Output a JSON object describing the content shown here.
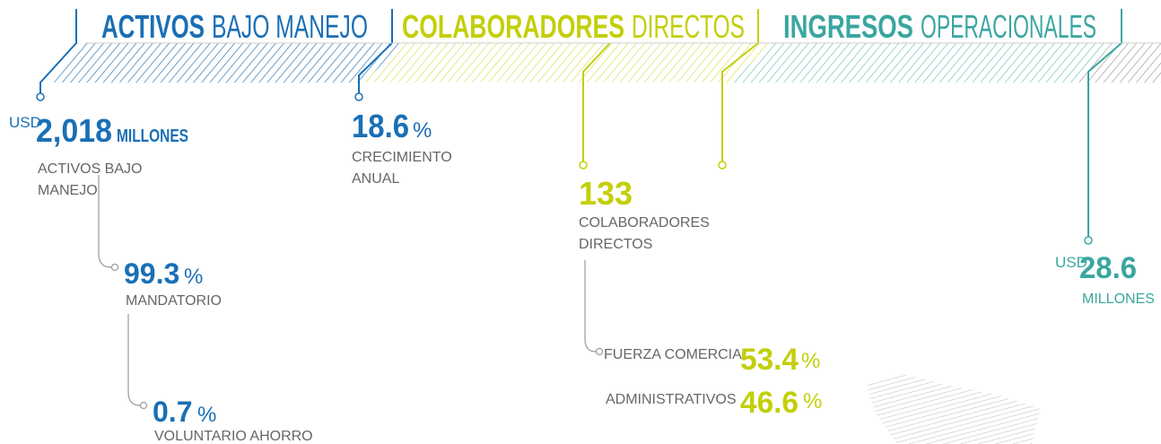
{
  "header": {
    "sections": [
      {
        "bold": "ACTIVOS",
        "light": "BAJO MANEJO"
      },
      {
        "bold": "COLABORADORES",
        "light": "DIRECTOS"
      },
      {
        "bold": "INGRESOS",
        "light": "OPERACIONALES"
      }
    ]
  },
  "stats": {
    "assets": {
      "currency": "USD",
      "value": "2,018",
      "unit": "MILLONES",
      "label_lines": [
        "ACTIVOS BAJO",
        "MANEJO"
      ]
    },
    "mandatory": {
      "value": "99.3",
      "unit": "%",
      "label": "MANDATORIO"
    },
    "voluntary": {
      "value": "0.7",
      "unit": "%",
      "label": "VOLUNTARIO AHORRO"
    },
    "growth": {
      "value": "18.6",
      "unit": "%",
      "label_lines": [
        "CRECIMIENTO",
        "ANUAL"
      ]
    },
    "staff": {
      "value": "133",
      "label_lines": [
        "COLABORADORES",
        "DIRECTOS"
      ]
    },
    "commercial": {
      "label": "FUERZA COMERCIAL",
      "value": "53.4",
      "unit": "%"
    },
    "admin": {
      "label": "ADMINISTRATIVOS",
      "value": "46.6",
      "unit": "%"
    },
    "revenue": {
      "currency": "USD",
      "value": "28.6",
      "unit": "MILLONES"
    }
  }
}
